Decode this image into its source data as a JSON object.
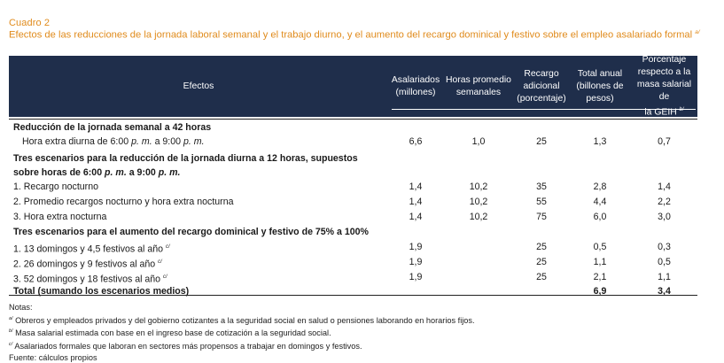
{
  "cuadro": {
    "label": "Cuadro 2",
    "title": "Efectos de las reducciones de la jornada laboral semanal y el trabajo diurno, y el aumento del recargo dominical y festivo sobre el empleo asalariado formal",
    "title_note": "a/"
  },
  "table": {
    "headers": [
      "Efectos",
      "Asalariados\n(millones)",
      "Horas promedio\nsemanales",
      "Recargo\nadicional\n(porcentaje)",
      "Total anual\n(billones de\npesos)",
      "Porcentaje\nrespecto a la\nmasa salarial de\nla GEIH"
    ],
    "header_last_note": "b/",
    "rows": [
      {
        "label": "Reducción de la jornada semanal a 42 horas",
        "bold": true
      },
      {
        "label_parts": [
          "Hora extra diurna de 6:00 ",
          "p. m.",
          " a 9:00 ",
          "p. m."
        ],
        "values": [
          "6,6",
          "1,0",
          "25",
          "1,3",
          "0,7"
        ],
        "indent": true
      },
      {
        "label": "Tres escenarios para la reducción de la jornada diurna a 12 horas, supuestos",
        "bold": true
      },
      {
        "label_parts": [
          "sobre horas de 6:00 ",
          "p. m.",
          " a 9:00 ",
          "p. m."
        ],
        "bold": true
      },
      {
        "label": "1. Recargo nocturno",
        "values": [
          "1,4",
          "10,2",
          "35",
          "2,8",
          "1,4"
        ]
      },
      {
        "label": "2. Promedio recargos nocturno y hora extra nocturna",
        "values": [
          "1,4",
          "10,2",
          "55",
          "4,4",
          "2,2"
        ]
      },
      {
        "label": "3. Hora extra nocturna",
        "values": [
          "1,4",
          "10,2",
          "75",
          "6,0",
          "3,0"
        ]
      },
      {
        "label": "Tres escenarios para el aumento del recargo dominical y festivo de 75% a 100%",
        "bold": true
      },
      {
        "label": "1. 13 domingos y 4,5 festivos al año",
        "note": "c/",
        "values": [
          "1,9",
          "",
          "25",
          "0,5",
          "0,3"
        ]
      },
      {
        "label": "2. 26 domingos y 9 festivos al año",
        "note": "c/",
        "values": [
          "1,9",
          "",
          "25",
          "1,1",
          "0,5"
        ]
      },
      {
        "label": "3. 52 domingos y 18 festivos al año",
        "note": "c/",
        "values": [
          "1,9",
          "",
          "25",
          "2,1",
          "1,1"
        ]
      },
      {
        "label": "Total (sumando los escenarios medios)",
        "bold": true,
        "values": [
          "",
          "",
          "",
          "6,9",
          "3,4"
        ],
        "values_bold": true
      }
    ]
  },
  "notes": {
    "heading": "Notas:",
    "items": [
      {
        "mark": "a/",
        "text": " Obreros y empleados privados y del gobierno cotizantes a la seguridad social en salud o pensiones laborando en horarios fijos."
      },
      {
        "mark": "b/",
        "text": " Masa salarial estimada con base en el ingreso base de cotización a la seguridad social."
      },
      {
        "mark": "c/",
        "text": " Asalariados formales que laboran en sectores más propensos a trabajar en domingos y festivos."
      }
    ],
    "source": "Fuente: cálculos propios"
  }
}
